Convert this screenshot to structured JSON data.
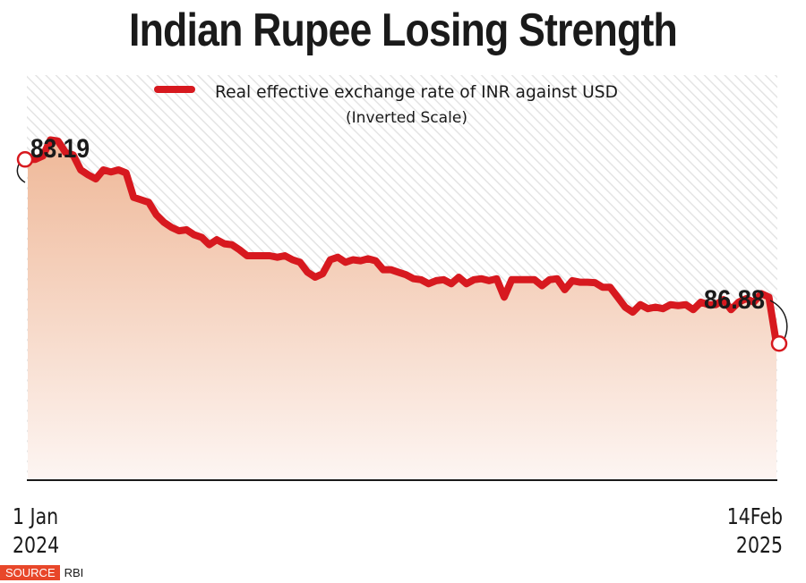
{
  "title": "Indian Rupee Losing Strength",
  "legend": {
    "label": "Real effective exchange rate of INR against USD",
    "sublabel": "(Inverted Scale)"
  },
  "start_date": {
    "line1": "1 Jan",
    "line2": "2024"
  },
  "end_date": {
    "line1": "14Feb",
    "line2": "2025"
  },
  "source": {
    "badge": "SOURCE",
    "text": "RBI"
  },
  "colors": {
    "line": "#d7191f",
    "fill_top": "#efb898",
    "fill_bottom": "#fdf5f2",
    "badge": "#e8472a"
  },
  "chart_data": {
    "type": "area",
    "title": "Indian Rupee Losing Strength",
    "series": [
      {
        "name": "Real effective exchange rate of INR against USD",
        "note": "Inverted Scale",
        "start_label": "83.19",
        "end_label": "86.88",
        "values": [
          83.19,
          83.19,
          83.12,
          82.8,
          82.82,
          83.05,
          83.1,
          83.4,
          83.5,
          83.58,
          83.4,
          83.44,
          83.4,
          83.46,
          83.95,
          84.0,
          84.05,
          84.3,
          84.45,
          84.55,
          84.62,
          84.6,
          84.7,
          84.75,
          84.9,
          84.8,
          84.88,
          84.9,
          85.0,
          85.12,
          85.12,
          85.12,
          85.12,
          85.15,
          85.12,
          85.2,
          85.25,
          85.45,
          85.55,
          85.48,
          85.2,
          85.15,
          85.25,
          85.2,
          85.22,
          85.18,
          85.22,
          85.4,
          85.4,
          85.45,
          85.5,
          85.58,
          85.6,
          85.68,
          85.62,
          85.6,
          85.68,
          85.55,
          85.68,
          85.6,
          85.58,
          85.62,
          85.58,
          85.95,
          85.6,
          85.6,
          85.6,
          85.6,
          85.72,
          85.6,
          85.58,
          85.8,
          85.62,
          85.65,
          85.65,
          85.66,
          85.75,
          85.75,
          85.95,
          86.15,
          86.25,
          86.1,
          86.18,
          86.15,
          86.18,
          86.1,
          86.12,
          86.1,
          86.2,
          86.05,
          86.1,
          86.1,
          86.0,
          86.2,
          86.05,
          85.98,
          86.05,
          85.88,
          85.95,
          86.88
        ]
      }
    ],
    "x": {
      "start": "1 Jan 2024",
      "end": "14 Feb 2025"
    },
    "xlabel": "",
    "ylabel": "",
    "inverted_y": true,
    "ylim": [
      81.5,
      89.6
    ],
    "grid": false,
    "legend_position": "top-center"
  }
}
